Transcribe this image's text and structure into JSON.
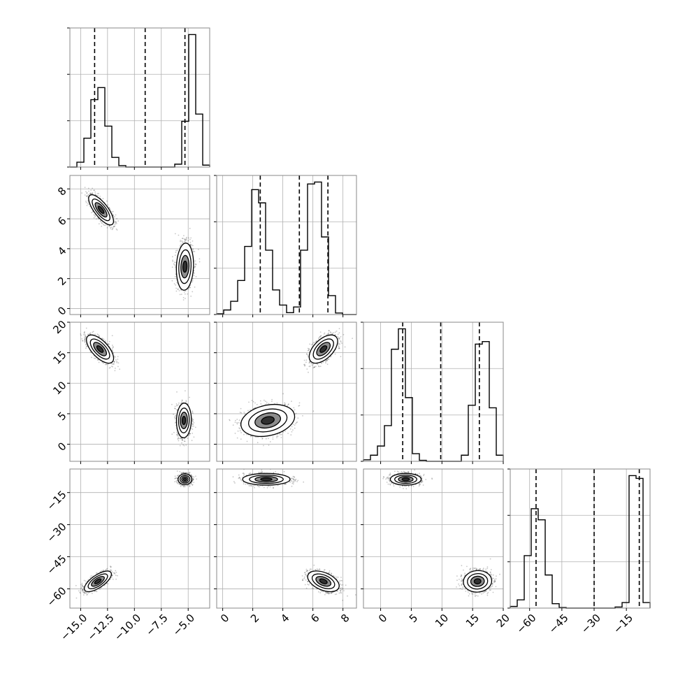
{
  "chart_data": {
    "type": "corner",
    "title": "",
    "parameters": [
      {
        "range": [
          -16.0,
          -3.0
        ],
        "ticks": [
          -15.0,
          -12.5,
          -10.0,
          -7.5,
          -5.0
        ],
        "tick_labels": [
          "−15.0",
          "−12.5",
          "−10.0",
          "−7.5",
          "−5.0"
        ],
        "quantiles": [
          -13.7,
          -9.0,
          -5.3
        ]
      },
      {
        "range": [
          -0.4,
          8.9
        ],
        "ticks": [
          0,
          2,
          4,
          6,
          8
        ],
        "tick_labels": [
          "0",
          "2",
          "4",
          "6",
          "8"
        ],
        "quantiles": [
          2.5,
          5.1,
          7.0
        ]
      },
      {
        "range": [
          -2.8,
          20.0
        ],
        "ticks": [
          0,
          5,
          10,
          15,
          20
        ],
        "tick_labels": [
          "0",
          "5",
          "10",
          "15",
          "20"
        ],
        "quantiles": [
          3.6,
          9.8,
          16.1
        ]
      },
      {
        "range": [
          -69.0,
          -4.0
        ],
        "ticks": [
          -60,
          -45,
          -30,
          -15
        ],
        "tick_labels": [
          "−60",
          "−45",
          "−30",
          "−15"
        ],
        "quantiles": [
          -57.0,
          -30.0,
          -9.0
        ]
      }
    ],
    "histograms": [
      {
        "param": 0,
        "edges": [
          -16.0,
          -15.35,
          -14.7,
          -14.05,
          -13.4,
          -12.75,
          -12.1,
          -11.45,
          -10.8,
          -10.15,
          -9.5,
          -8.85,
          -8.2,
          -7.55,
          -6.9,
          -6.25,
          -5.6,
          -4.95,
          -4.3,
          -3.65,
          -3.0
        ],
        "counts": [
          0,
          1,
          6,
          14,
          16.5,
          8.5,
          2,
          0.3,
          0,
          0,
          0,
          0,
          0,
          0,
          0,
          0.6,
          9.5,
          27.5,
          11,
          0.4
        ]
      },
      {
        "param": 1,
        "edges": [
          -0.4,
          0.065,
          0.53,
          0.995,
          1.46,
          1.925,
          2.39,
          2.855,
          3.32,
          3.785,
          4.25,
          4.715,
          5.18,
          5.645,
          6.11,
          6.575,
          7.04,
          7.505,
          7.97,
          8.435,
          8.9
        ],
        "counts": [
          0.2,
          1.2,
          3.5,
          9,
          18,
          33,
          29.5,
          17,
          6.5,
          2.5,
          0.5,
          2,
          17,
          34.5,
          35,
          20.5,
          5,
          0.4,
          0,
          0
        ]
      },
      {
        "param": 2,
        "edges": [
          -2.8,
          -1.66,
          -0.52,
          0.62,
          1.76,
          2.9,
          4.04,
          5.18,
          6.32,
          7.46,
          8.6,
          9.74,
          10.88,
          12.02,
          13.16,
          14.3,
          15.44,
          16.58,
          17.72,
          18.86,
          20.0
        ],
        "counts": [
          0.3,
          1.2,
          3,
          7,
          22,
          26,
          12.5,
          1.5,
          0.2,
          0,
          0,
          0,
          0,
          0,
          1.2,
          11,
          23,
          23.5,
          10.5,
          1.2
        ]
      },
      {
        "param": 3,
        "edges": [
          -69.0,
          -65.75,
          -62.5,
          -59.25,
          -56.0,
          -52.75,
          -49.5,
          -46.25,
          -43.0,
          -39.75,
          -36.5,
          -33.25,
          -30.0,
          -26.75,
          -23.5,
          -20.25,
          -17.0,
          -13.75,
          -10.5,
          -7.25,
          -4.0
        ],
        "counts": [
          0.3,
          1.5,
          9.5,
          18,
          16,
          6,
          0.8,
          0.1,
          0,
          0,
          0,
          0,
          0,
          0,
          0,
          0.2,
          1,
          24,
          23.5,
          1
        ]
      }
    ],
    "scatter_2d": [
      {
        "x_param": 0,
        "y_param": 1,
        "modes": [
          {
            "x_mean": -13.1,
            "y_mean": 6.6,
            "x_sd": 0.55,
            "y_sd": 0.48,
            "rho": -0.75
          },
          {
            "x_mean": -5.3,
            "y_mean": 2.8,
            "x_sd": 0.38,
            "y_sd": 0.75,
            "rho": 0.1
          }
        ]
      },
      {
        "x_param": 0,
        "y_param": 2,
        "modes": [
          {
            "x_mean": -13.2,
            "y_mean": 15.6,
            "x_sd": 0.6,
            "y_sd": 1.1,
            "rho": -0.65
          },
          {
            "x_mean": -5.4,
            "y_mean": 3.9,
            "x_sd": 0.33,
            "y_sd": 1.35,
            "rho": 0.05
          }
        ]
      },
      {
        "x_param": 1,
        "y_param": 2,
        "modes": [
          {
            "x_mean": 6.7,
            "y_mean": 15.6,
            "x_sd": 0.45,
            "y_sd": 1.1,
            "rho": 0.55
          },
          {
            "x_mean": 3.0,
            "y_mean": 3.9,
            "x_sd": 0.85,
            "y_sd": 1.25,
            "rho": 0.25
          }
        ]
      },
      {
        "x_param": 0,
        "y_param": 3,
        "modes": [
          {
            "x_mean": -5.3,
            "y_mean": -8.8,
            "x_sd": 0.3,
            "y_sd": 1.2,
            "rho": 0.0
          },
          {
            "x_mean": -13.4,
            "y_mean": -56.5,
            "x_sd": 0.6,
            "y_sd": 2.3,
            "rho": 0.7
          }
        ]
      },
      {
        "x_param": 1,
        "y_param": 3,
        "modes": [
          {
            "x_mean": 2.9,
            "y_mean": -8.8,
            "x_sd": 0.75,
            "y_sd": 1.3,
            "rho": 0.0
          },
          {
            "x_mean": 6.7,
            "y_mean": -56.5,
            "x_sd": 0.5,
            "y_sd": 2.3,
            "rho": -0.45
          }
        ]
      },
      {
        "x_param": 2,
        "y_param": 3,
        "modes": [
          {
            "x_mean": 4.1,
            "y_mean": -8.8,
            "x_sd": 1.2,
            "y_sd": 1.3,
            "rho": 0.0
          },
          {
            "x_mean": 15.8,
            "y_mean": -56.5,
            "x_sd": 1.1,
            "y_sd": 2.4,
            "rho": 0.05
          }
        ]
      }
    ],
    "grid": true,
    "xlabel": "",
    "ylabel": ""
  }
}
